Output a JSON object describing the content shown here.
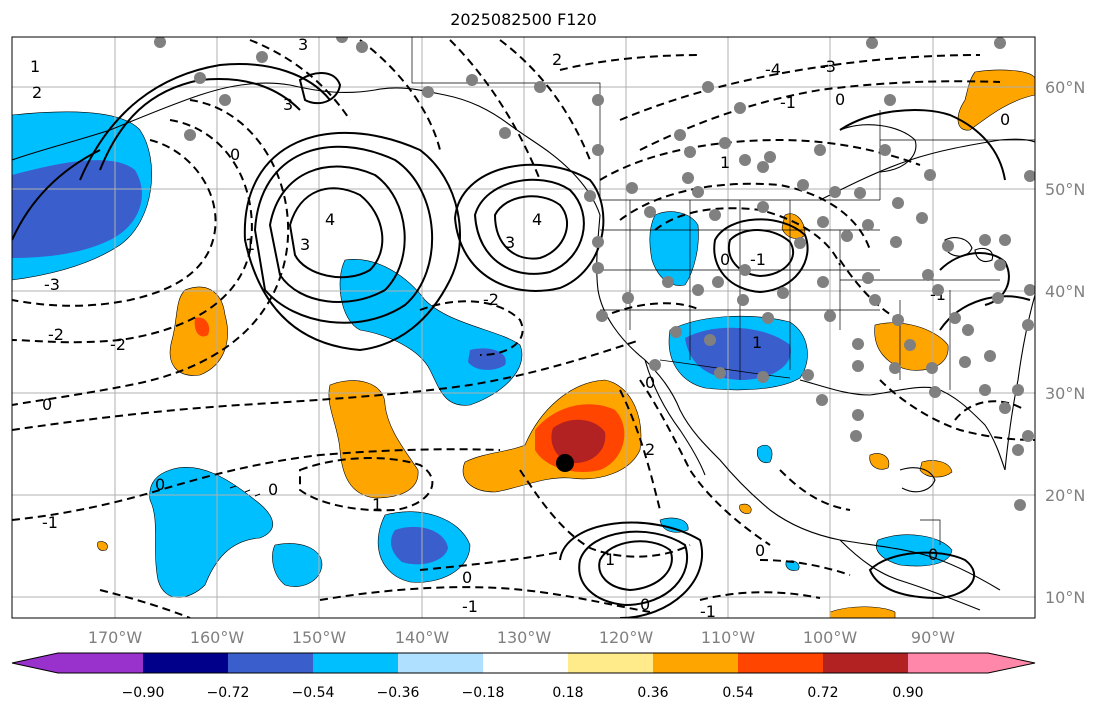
{
  "title": "2025082500 F120",
  "lat_labels": [
    "60°N",
    "50°N",
    "40°N",
    "30°N",
    "20°N",
    "10°N"
  ],
  "lon_labels": [
    "170°W",
    "160°W",
    "150°W",
    "140°W",
    "130°W",
    "120°W",
    "110°W",
    "100°W",
    "90°W"
  ],
  "colorbar": {
    "ticks": [
      "−0.90",
      "−0.72",
      "−0.54",
      "−0.36",
      "−0.18",
      "0.18",
      "0.36",
      "0.54",
      "0.72",
      "0.90"
    ],
    "colors": [
      "#9932cc",
      "#00008b",
      "#3a5fcd",
      "#00bfff",
      "#b0e0ff",
      "#ffffff",
      "#ffeb8a",
      "#ffa500",
      "#ff4500",
      "#b22222",
      "#ff88aa"
    ]
  },
  "contour_labels": [
    "1",
    "2",
    "3",
    "3",
    "4",
    "3",
    "4",
    "3",
    "2",
    "1",
    "0",
    "-1",
    "-2",
    "-3",
    "-4",
    "0",
    "-1",
    "-2",
    "-3",
    "1",
    "0",
    "0",
    "1",
    "2",
    "-1",
    "0",
    "1",
    "0",
    "0",
    "-1",
    "-1",
    "0",
    "-2",
    "-1",
    "0",
    "0",
    "1",
    "0",
    "0"
  ],
  "colors": {
    "map_border": "#000000",
    "grid": "#b0b0b0",
    "stations": "#808080",
    "storm_center": "#000000"
  }
}
